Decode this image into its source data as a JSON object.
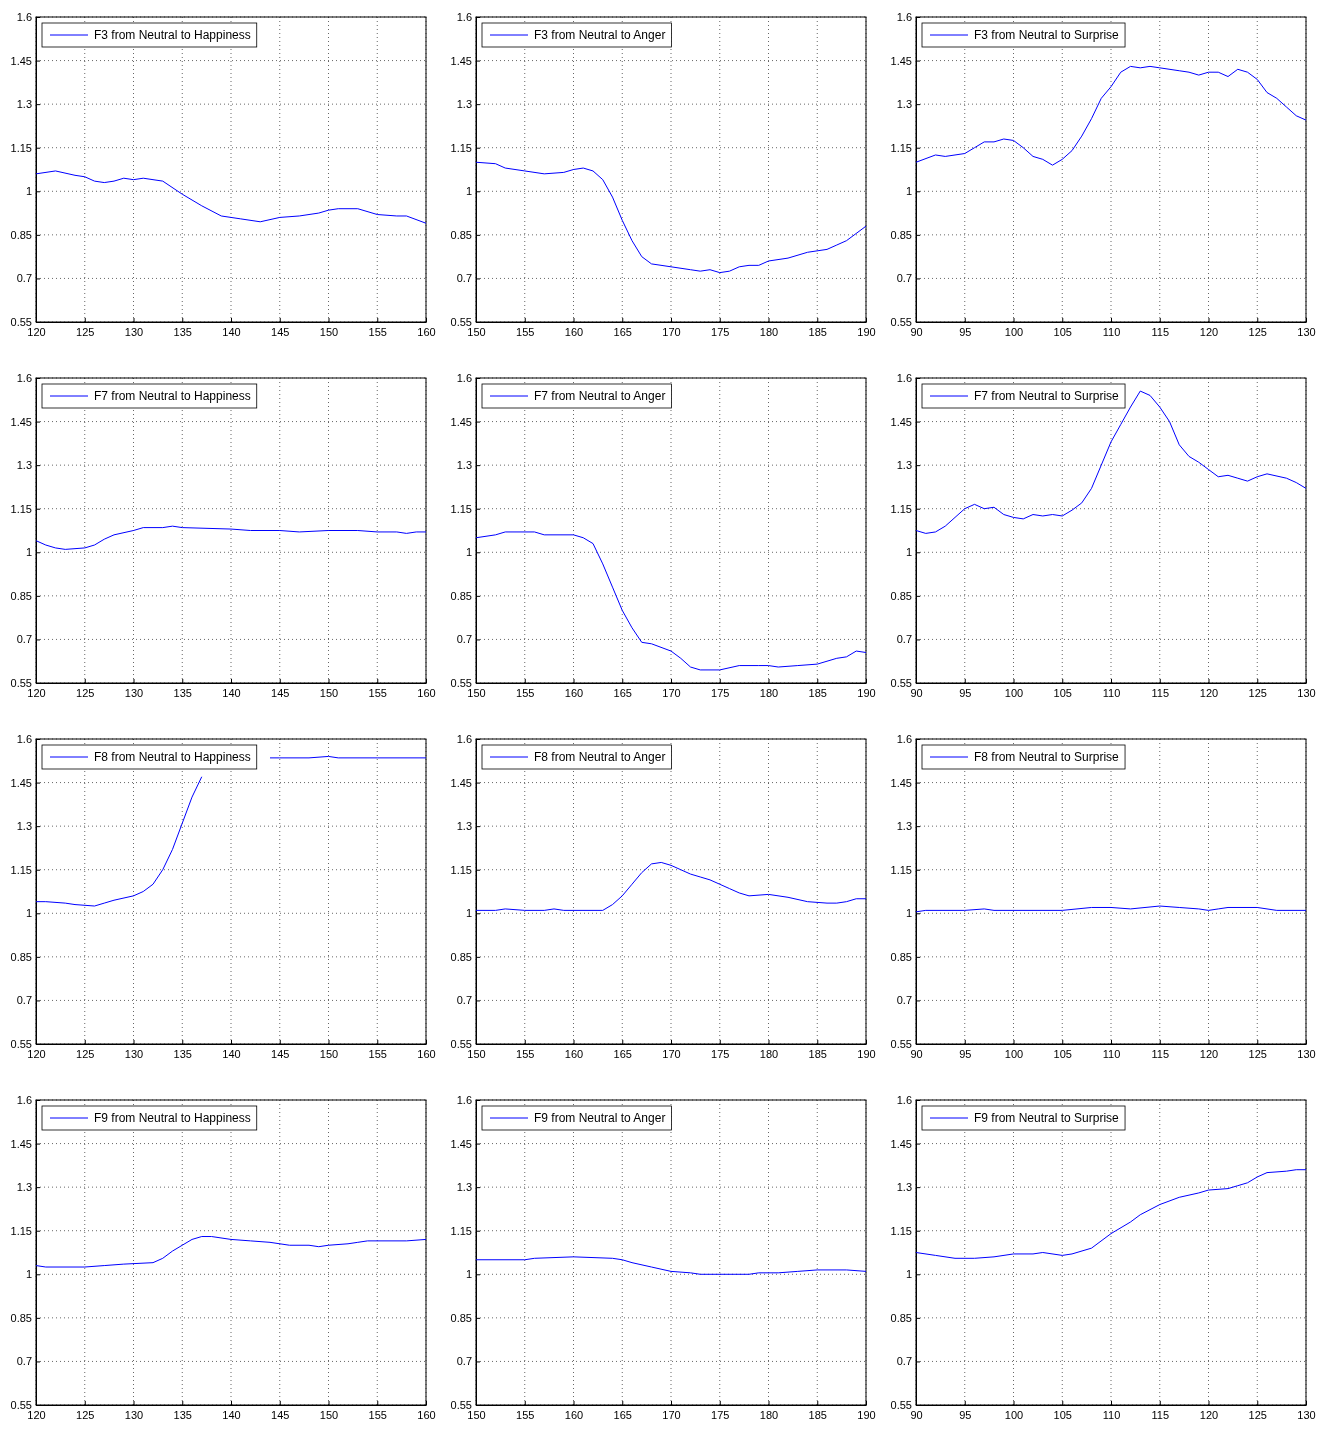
{
  "chart_data": [
    {
      "type": "line",
      "legend": "top left",
      "grid": true,
      "xlim": [
        120,
        160
      ],
      "xticks": [
        120,
        125,
        130,
        135,
        140,
        145,
        150,
        155,
        160
      ],
      "ylim": [
        0.55,
        1.6
      ],
      "yticks": [
        0.55,
        0.7,
        0.85,
        1,
        1.15,
        1.3,
        1.45,
        1.6
      ],
      "series": [
        {
          "name": "F3 from Neutral to Happiness",
          "color": "#0000ff",
          "x": [
            120,
            122,
            124,
            125,
            126,
            127,
            128,
            129,
            130,
            131,
            133,
            135,
            137,
            139,
            141,
            143,
            145,
            147,
            149,
            150,
            151,
            153,
            155,
            157,
            158,
            160
          ],
          "values": [
            1.06,
            1.07,
            1.055,
            1.05,
            1.035,
            1.03,
            1.035,
            1.045,
            1.04,
            1.045,
            1.035,
            0.99,
            0.95,
            0.915,
            0.905,
            0.895,
            0.91,
            0.915,
            0.925,
            0.935,
            0.94,
            0.94,
            0.92,
            0.915,
            0.915,
            0.89
          ]
        }
      ]
    },
    {
      "type": "line",
      "legend": "top left",
      "grid": true,
      "xlim": [
        150,
        190
      ],
      "xticks": [
        150,
        155,
        160,
        165,
        170,
        175,
        180,
        185,
        190
      ],
      "ylim": [
        0.55,
        1.6
      ],
      "yticks": [
        0.55,
        0.7,
        0.85,
        1,
        1.15,
        1.3,
        1.45,
        1.6
      ],
      "series": [
        {
          "name": "F3 from Neutral to Anger",
          "color": "#0000ff",
          "x": [
            150,
            152,
            153,
            155,
            157,
            159,
            160,
            161,
            162,
            163,
            164,
            165,
            166,
            167,
            168,
            170,
            172,
            173,
            174,
            175,
            176,
            177,
            178,
            179,
            180,
            182,
            184,
            186,
            187,
            188,
            190
          ],
          "values": [
            1.1,
            1.095,
            1.08,
            1.07,
            1.06,
            1.065,
            1.075,
            1.08,
            1.07,
            1.04,
            0.98,
            0.9,
            0.83,
            0.775,
            0.75,
            0.74,
            0.73,
            0.725,
            0.73,
            0.72,
            0.725,
            0.74,
            0.745,
            0.745,
            0.76,
            0.77,
            0.79,
            0.8,
            0.815,
            0.83,
            0.88
          ]
        }
      ]
    },
    {
      "type": "line",
      "legend": "top left",
      "grid": true,
      "xlim": [
        90,
        130
      ],
      "xticks": [
        90,
        95,
        100,
        105,
        110,
        115,
        120,
        125,
        130
      ],
      "ylim": [
        0.55,
        1.6
      ],
      "yticks": [
        0.55,
        0.7,
        0.85,
        1,
        1.15,
        1.3,
        1.45,
        1.6
      ],
      "series": [
        {
          "name": "F3 from Neutral to Surprise",
          "color": "#0000ff",
          "x": [
            90,
            92,
            93,
            95,
            96,
            97,
            98,
            99,
            100,
            101,
            102,
            103,
            104,
            105,
            106,
            107,
            108,
            109,
            110,
            111,
            112,
            113,
            114,
            115,
            117,
            118,
            119,
            120,
            121,
            122,
            123,
            124,
            125,
            126,
            127,
            128,
            129,
            130
          ],
          "values": [
            1.1,
            1.125,
            1.12,
            1.13,
            1.15,
            1.17,
            1.17,
            1.18,
            1.175,
            1.15,
            1.12,
            1.11,
            1.09,
            1.11,
            1.14,
            1.19,
            1.25,
            1.32,
            1.36,
            1.41,
            1.43,
            1.425,
            1.43,
            1.425,
            1.415,
            1.41,
            1.4,
            1.41,
            1.41,
            1.395,
            1.42,
            1.41,
            1.385,
            1.34,
            1.32,
            1.29,
            1.26,
            1.245
          ]
        }
      ]
    },
    {
      "type": "line",
      "legend": "top left",
      "grid": true,
      "xlim": [
        120,
        160
      ],
      "xticks": [
        120,
        125,
        130,
        135,
        140,
        145,
        150,
        155,
        160
      ],
      "ylim": [
        0.55,
        1.6
      ],
      "yticks": [
        0.55,
        0.7,
        0.85,
        1,
        1.15,
        1.3,
        1.45,
        1.6
      ],
      "series": [
        {
          "name": "F7 from Neutral to Happiness",
          "color": "#0000ff",
          "x": [
            120,
            121,
            122,
            123,
            125,
            126,
            127,
            128,
            130,
            131,
            133,
            134,
            135,
            140,
            142,
            145,
            147,
            150,
            153,
            155,
            157,
            158,
            159,
            160
          ],
          "values": [
            1.04,
            1.025,
            1.015,
            1.01,
            1.015,
            1.025,
            1.045,
            1.06,
            1.075,
            1.085,
            1.085,
            1.09,
            1.085,
            1.08,
            1.075,
            1.075,
            1.07,
            1.075,
            1.075,
            1.07,
            1.07,
            1.065,
            1.07,
            1.07
          ]
        }
      ]
    },
    {
      "type": "line",
      "legend": "top left",
      "grid": true,
      "xlim": [
        150,
        190
      ],
      "xticks": [
        150,
        155,
        160,
        165,
        170,
        175,
        180,
        185,
        190
      ],
      "ylim": [
        0.55,
        1.6
      ],
      "yticks": [
        0.55,
        0.7,
        0.85,
        1,
        1.15,
        1.3,
        1.45,
        1.6
      ],
      "series": [
        {
          "name": "F7 from Neutral to Anger",
          "color": "#0000ff",
          "x": [
            150,
            152,
            153,
            156,
            157,
            160,
            161,
            162,
            163,
            164,
            165,
            166,
            167,
            168,
            170,
            171,
            172,
            173,
            175,
            177,
            179,
            180,
            181,
            183,
            185,
            186,
            187,
            188,
            189,
            190
          ],
          "values": [
            1.05,
            1.06,
            1.07,
            1.07,
            1.06,
            1.06,
            1.05,
            1.03,
            0.96,
            0.88,
            0.8,
            0.74,
            0.69,
            0.685,
            0.66,
            0.635,
            0.605,
            0.595,
            0.595,
            0.61,
            0.61,
            0.61,
            0.605,
            0.61,
            0.615,
            0.625,
            0.635,
            0.64,
            0.66,
            0.655
          ]
        }
      ]
    },
    {
      "type": "line",
      "legend": "top left",
      "grid": true,
      "xlim": [
        90,
        130
      ],
      "xticks": [
        90,
        95,
        100,
        105,
        110,
        115,
        120,
        125,
        130
      ],
      "ylim": [
        0.55,
        1.6
      ],
      "yticks": [
        0.55,
        0.7,
        0.85,
        1,
        1.15,
        1.3,
        1.45,
        1.6
      ],
      "series": [
        {
          "name": "F7 from Neutral to Surprise",
          "color": "#0000ff",
          "x": [
            90,
            91,
            92,
            93,
            94,
            95,
            96,
            97,
            98,
            99,
            100,
            101,
            102,
            103,
            104,
            105,
            106,
            107,
            108,
            109,
            110,
            111,
            112,
            113,
            114,
            115,
            116,
            117,
            118,
            119,
            120,
            121,
            122,
            123,
            124,
            125,
            126,
            128,
            129,
            130
          ],
          "values": [
            1.075,
            1.065,
            1.07,
            1.09,
            1.12,
            1.15,
            1.165,
            1.15,
            1.155,
            1.13,
            1.12,
            1.115,
            1.13,
            1.125,
            1.13,
            1.125,
            1.145,
            1.17,
            1.22,
            1.3,
            1.38,
            1.44,
            1.5,
            1.555,
            1.54,
            1.5,
            1.45,
            1.37,
            1.33,
            1.31,
            1.285,
            1.26,
            1.265,
            1.255,
            1.245,
            1.26,
            1.27,
            1.255,
            1.24,
            1.22
          ]
        }
      ]
    },
    {
      "type": "line",
      "legend": "top left",
      "grid": true,
      "xlim": [
        120,
        160
      ],
      "xticks": [
        120,
        125,
        130,
        135,
        140,
        145,
        150,
        155,
        160
      ],
      "ylim": [
        0.55,
        1.6
      ],
      "yticks": [
        0.55,
        0.7,
        0.85,
        1,
        1.15,
        1.3,
        1.45,
        1.6
      ],
      "series": [
        {
          "name": "F8 from Neutral to Happiness",
          "color": "#0000ff",
          "x": [
            120,
            121,
            123,
            124,
            126,
            127,
            128,
            130,
            131,
            132,
            133,
            134,
            135,
            136,
            137,
            139,
            141,
            143,
            144,
            145,
            148,
            150,
            151,
            155,
            160
          ],
          "values": [
            1.04,
            1.04,
            1.035,
            1.03,
            1.025,
            1.035,
            1.045,
            1.06,
            1.075,
            1.1,
            1.15,
            1.22,
            1.31,
            1.4,
            1.47,
            null,
            null,
            null,
            1.535,
            1.535,
            1.535,
            1.54,
            1.535,
            1.535,
            1.535
          ]
        }
      ]
    },
    {
      "type": "line",
      "legend": "top left",
      "grid": true,
      "xlim": [
        150,
        190
      ],
      "xticks": [
        150,
        155,
        160,
        165,
        170,
        175,
        180,
        185,
        190
      ],
      "ylim": [
        0.55,
        1.6
      ],
      "yticks": [
        0.55,
        0.7,
        0.85,
        1,
        1.15,
        1.3,
        1.45,
        1.6
      ],
      "series": [
        {
          "name": "F8 from Neutral to Anger",
          "color": "#0000ff",
          "x": [
            150,
            152,
            153,
            155,
            157,
            158,
            159,
            163,
            164,
            165,
            166,
            167,
            168,
            169,
            170,
            171,
            172,
            173,
            174,
            175,
            176,
            177,
            178,
            180,
            182,
            184,
            186,
            187,
            188,
            189,
            190
          ],
          "values": [
            1.01,
            1.01,
            1.015,
            1.01,
            1.01,
            1.015,
            1.01,
            1.01,
            1.03,
            1.06,
            1.1,
            1.14,
            1.17,
            1.175,
            1.165,
            1.15,
            1.135,
            1.125,
            1.115,
            1.1,
            1.085,
            1.07,
            1.06,
            1.065,
            1.055,
            1.04,
            1.035,
            1.035,
            1.04,
            1.05,
            1.05
          ]
        }
      ]
    },
    {
      "type": "line",
      "legend": "top left",
      "grid": true,
      "xlim": [
        90,
        130
      ],
      "xticks": [
        90,
        95,
        100,
        105,
        110,
        115,
        120,
        125,
        130
      ],
      "ylim": [
        0.55,
        1.6
      ],
      "yticks": [
        0.55,
        0.7,
        0.85,
        1,
        1.15,
        1.3,
        1.45,
        1.6
      ],
      "series": [
        {
          "name": "F8 from Neutral to Surprise",
          "color": "#0000ff",
          "x": [
            90,
            91,
            95,
            97,
            98,
            105,
            108,
            110,
            112,
            115,
            117,
            119,
            120,
            121,
            122,
            125,
            127,
            130
          ],
          "values": [
            1.005,
            1.01,
            1.01,
            1.015,
            1.01,
            1.01,
            1.02,
            1.02,
            1.015,
            1.025,
            1.02,
            1.015,
            1.01,
            1.015,
            1.02,
            1.02,
            1.01,
            1.01
          ]
        }
      ]
    },
    {
      "type": "line",
      "legend": "top left",
      "grid": true,
      "xlim": [
        120,
        160
      ],
      "xticks": [
        120,
        125,
        130,
        135,
        140,
        145,
        150,
        155,
        160
      ],
      "ylim": [
        0.55,
        1.6
      ],
      "yticks": [
        0.55,
        0.7,
        0.85,
        1,
        1.15,
        1.3,
        1.45,
        1.6
      ],
      "series": [
        {
          "name": "F9 from Neutral to Happiness",
          "color": "#0000ff",
          "x": [
            120,
            121,
            125,
            127,
            129,
            132,
            133,
            134,
            135,
            136,
            137,
            138,
            140,
            142,
            144,
            146,
            148,
            149,
            150,
            152,
            153,
            154,
            156,
            158,
            160
          ],
          "values": [
            1.03,
            1.025,
            1.025,
            1.03,
            1.035,
            1.04,
            1.055,
            1.08,
            1.1,
            1.12,
            1.13,
            1.13,
            1.12,
            1.115,
            1.11,
            1.1,
            1.1,
            1.095,
            1.1,
            1.105,
            1.11,
            1.115,
            1.115,
            1.115,
            1.12
          ]
        }
      ]
    },
    {
      "type": "line",
      "legend": "top left",
      "grid": true,
      "xlim": [
        150,
        190
      ],
      "xticks": [
        150,
        155,
        160,
        165,
        170,
        175,
        180,
        185,
        190
      ],
      "ylim": [
        0.55,
        1.6
      ],
      "yticks": [
        0.55,
        0.7,
        0.85,
        1,
        1.15,
        1.3,
        1.45,
        1.6
      ],
      "series": [
        {
          "name": "F9 from Neutral to Anger",
          "color": "#0000ff",
          "x": [
            150,
            155,
            156,
            160,
            164,
            165,
            166,
            168,
            170,
            172,
            173,
            178,
            179,
            181,
            183,
            185,
            188,
            190
          ],
          "values": [
            1.05,
            1.05,
            1.055,
            1.06,
            1.055,
            1.05,
            1.04,
            1.025,
            1.01,
            1.005,
            1.0,
            1.0,
            1.005,
            1.005,
            1.01,
            1.015,
            1.015,
            1.01
          ]
        }
      ]
    },
    {
      "type": "line",
      "legend": "top left",
      "grid": true,
      "xlim": [
        90,
        130
      ],
      "xticks": [
        90,
        95,
        100,
        105,
        110,
        115,
        120,
        125,
        130
      ],
      "ylim": [
        0.55,
        1.6
      ],
      "yticks": [
        0.55,
        0.7,
        0.85,
        1,
        1.15,
        1.3,
        1.45,
        1.6
      ],
      "series": [
        {
          "name": "F9 from Neutral to Surprise",
          "color": "#0000ff",
          "x": [
            90,
            92,
            94,
            96,
            98,
            100,
            102,
            103,
            105,
            106,
            108,
            110,
            112,
            113,
            115,
            117,
            119,
            120,
            122,
            123,
            124,
            125,
            126,
            128,
            129,
            130
          ],
          "values": [
            1.075,
            1.065,
            1.055,
            1.055,
            1.06,
            1.07,
            1.07,
            1.075,
            1.065,
            1.07,
            1.09,
            1.14,
            1.18,
            1.205,
            1.24,
            1.265,
            1.28,
            1.29,
            1.295,
            1.305,
            1.315,
            1.335,
            1.35,
            1.355,
            1.36,
            1.36
          ]
        }
      ]
    }
  ]
}
